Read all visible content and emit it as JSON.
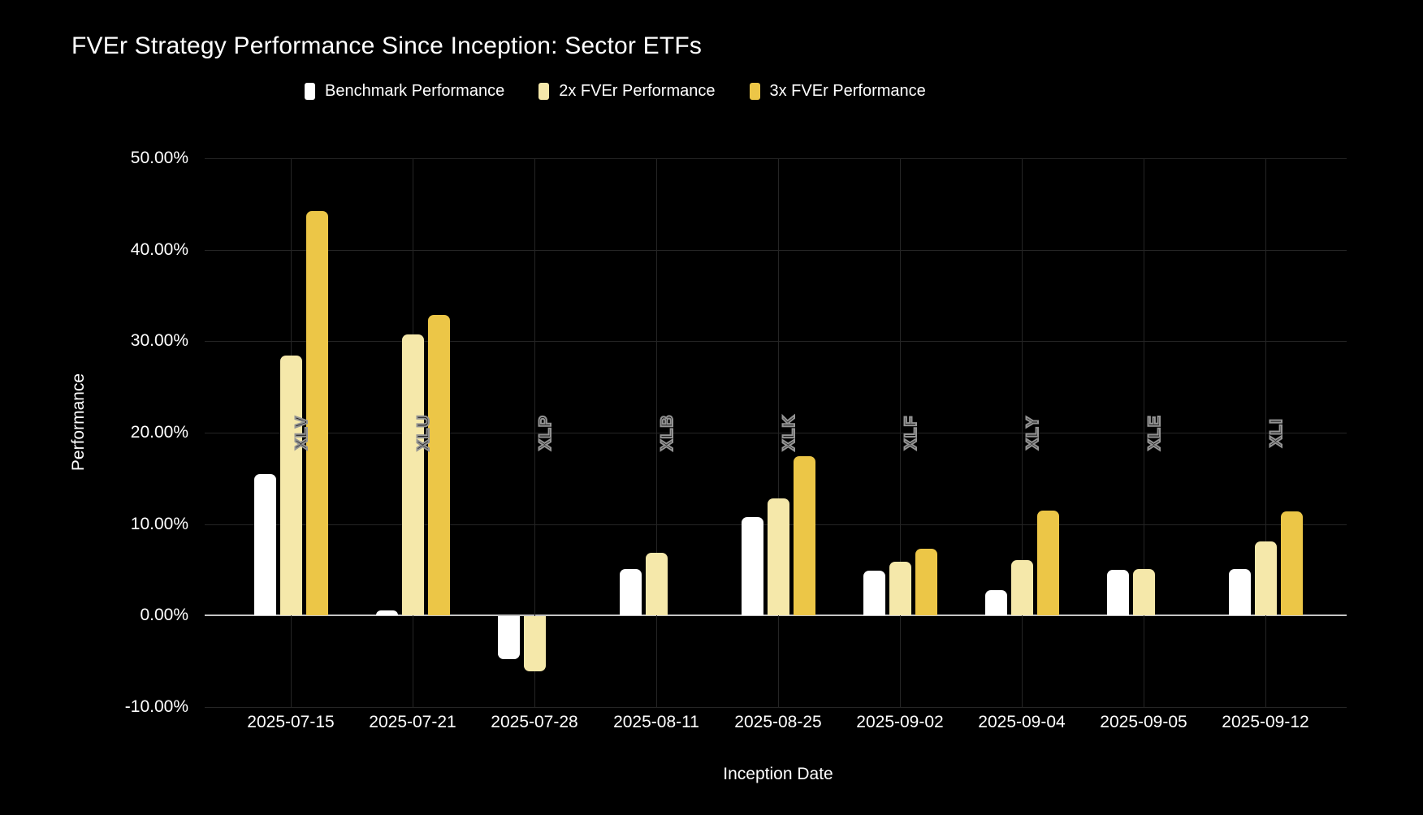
{
  "title": "FVEr Strategy Performance Since Inception: Sector ETFs",
  "chart_data": {
    "type": "bar",
    "title": "FVEr Strategy Performance Since Inception: Sector ETFs",
    "xlabel": "Inception Date",
    "ylabel": "Performance",
    "legend_position": "top",
    "grid": true,
    "background": "#000000",
    "ylim": [
      -10,
      50
    ],
    "yticks": [
      {
        "value": 50,
        "label": "50.00%"
      },
      {
        "value": 40,
        "label": "40.00%"
      },
      {
        "value": 30,
        "label": "30.00%"
      },
      {
        "value": 20,
        "label": "20.00%"
      },
      {
        "value": 10,
        "label": "10.00%"
      },
      {
        "value": 0,
        "label": "0.00%"
      },
      {
        "value": -10,
        "label": "-10.00%"
      }
    ],
    "categories": [
      "2025-07-15",
      "2025-07-21",
      "2025-07-28",
      "2025-08-11",
      "2025-08-25",
      "2025-09-02",
      "2025-09-04",
      "2025-09-05",
      "2025-09-12"
    ],
    "group_labels": [
      "XLV",
      "XLU",
      "XLP",
      "XLB",
      "XLK",
      "XLF",
      "XLY",
      "XLE",
      "XLI"
    ],
    "series": [
      {
        "name": "Benchmark Performance",
        "color": "#ffffff",
        "values": [
          15.5,
          0.6,
          -4.7,
          5.1,
          10.8,
          4.9,
          2.8,
          5.0,
          5.1
        ]
      },
      {
        "name": "2x FVEr Performance",
        "color": "#f5e8aa",
        "values": [
          28.4,
          30.7,
          -6.0,
          6.9,
          12.8,
          5.9,
          6.1,
          5.1,
          8.1
        ]
      },
      {
        "name": "3x FVEr Performance",
        "color": "#ecc647",
        "values": [
          44.2,
          32.9,
          null,
          null,
          17.4,
          7.3,
          11.5,
          null,
          11.4
        ]
      }
    ]
  },
  "colors": {
    "background": "#000000",
    "text": "#ffffff",
    "gridline": "#252525",
    "zero_axis": "#c4c4c4",
    "ticker_label": "#949494",
    "benchmark": "#ffffff",
    "fver_2x": "#f5e8aa",
    "fver_3x": "#ecc647"
  }
}
